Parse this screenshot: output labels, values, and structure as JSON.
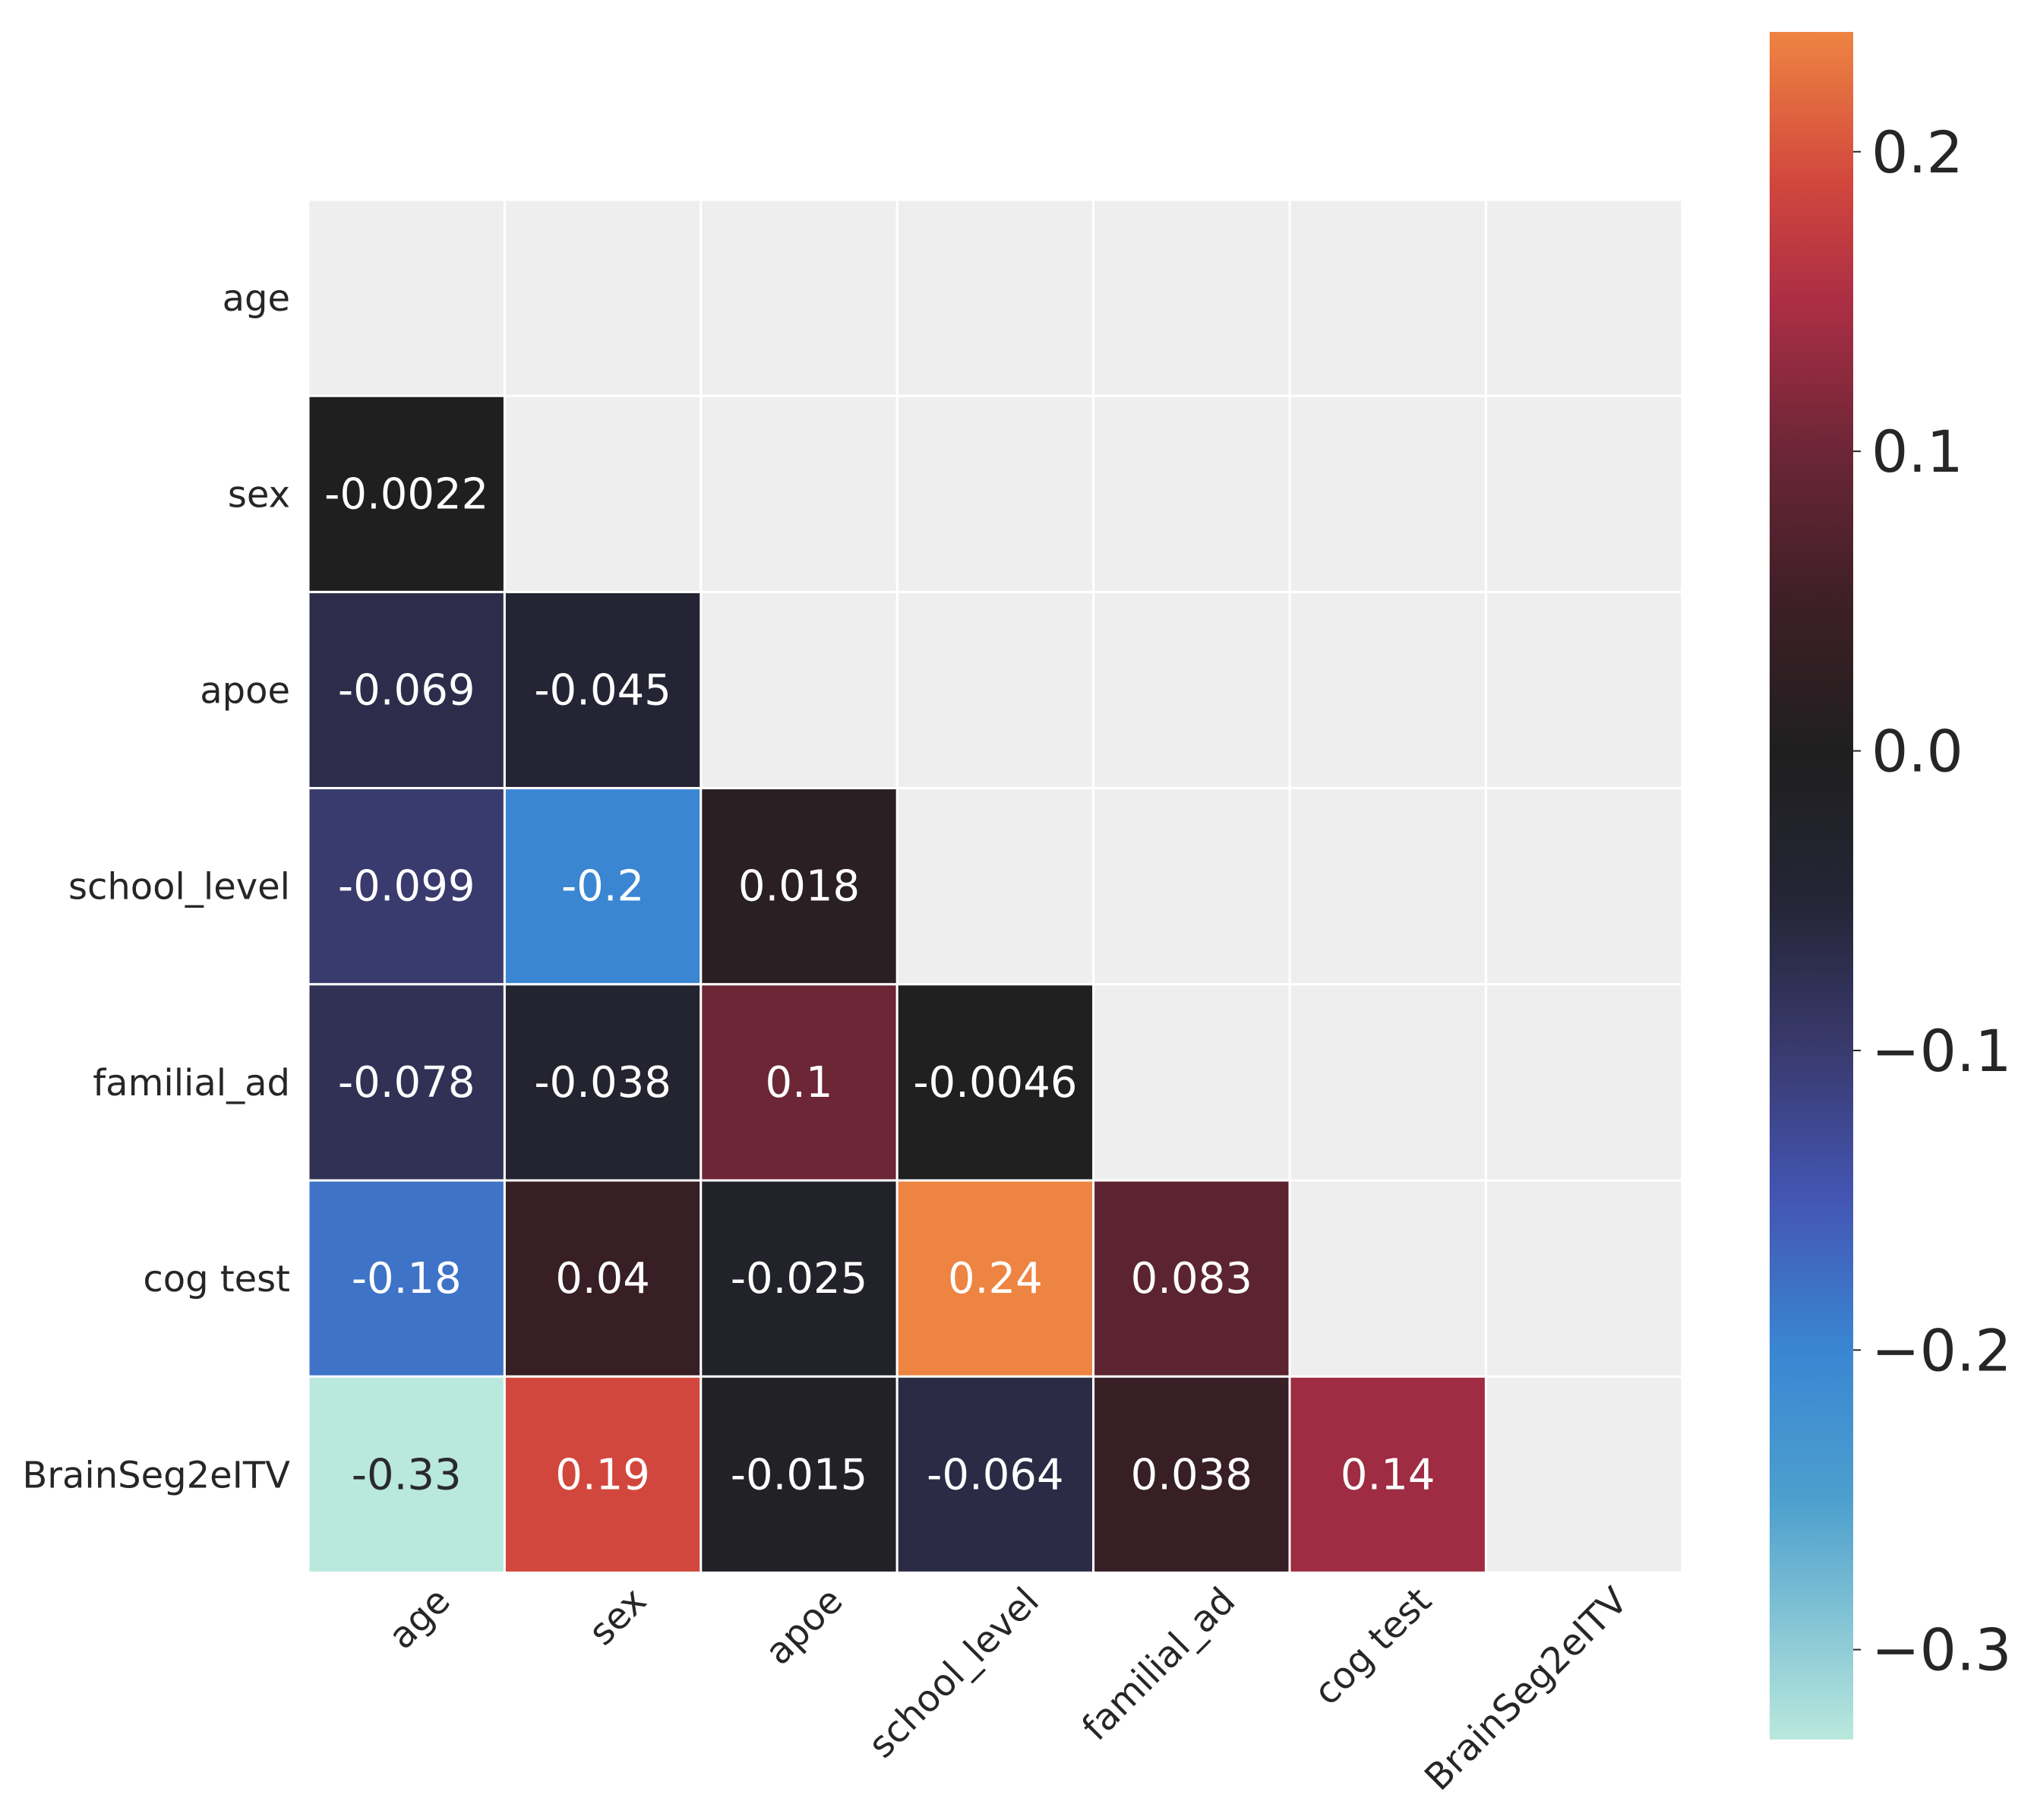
{
  "chart_data": {
    "type": "heatmap",
    "title": "",
    "xlabel": "",
    "ylabel": "",
    "rows": [
      "age",
      "sex",
      "apoe",
      "school_level",
      "familial_ad",
      "cog test",
      "BrainSeg2eITV"
    ],
    "columns": [
      "age",
      "sex",
      "apoe",
      "school_level",
      "familial_ad",
      "cog test",
      "BrainSeg2eITV"
    ],
    "mask": "upper triangle incl. diagonal",
    "cells": [
      {
        "row": 1,
        "col": 0,
        "value": -0.0022,
        "label": "-0.0022"
      },
      {
        "row": 2,
        "col": 0,
        "value": -0.069,
        "label": "-0.069"
      },
      {
        "row": 2,
        "col": 1,
        "value": -0.045,
        "label": "-0.045"
      },
      {
        "row": 3,
        "col": 0,
        "value": -0.099,
        "label": "-0.099"
      },
      {
        "row": 3,
        "col": 1,
        "value": -0.2,
        "label": "-0.2"
      },
      {
        "row": 3,
        "col": 2,
        "value": 0.018,
        "label": "0.018"
      },
      {
        "row": 4,
        "col": 0,
        "value": -0.078,
        "label": "-0.078"
      },
      {
        "row": 4,
        "col": 1,
        "value": -0.038,
        "label": "-0.038"
      },
      {
        "row": 4,
        "col": 2,
        "value": 0.1,
        "label": "0.1"
      },
      {
        "row": 4,
        "col": 3,
        "value": -0.0046,
        "label": "-0.0046"
      },
      {
        "row": 5,
        "col": 0,
        "value": -0.18,
        "label": "-0.18"
      },
      {
        "row": 5,
        "col": 1,
        "value": 0.04,
        "label": "0.04"
      },
      {
        "row": 5,
        "col": 2,
        "value": -0.025,
        "label": "-0.025"
      },
      {
        "row": 5,
        "col": 3,
        "value": 0.24,
        "label": "0.24"
      },
      {
        "row": 5,
        "col": 4,
        "value": 0.083,
        "label": "0.083"
      },
      {
        "row": 6,
        "col": 0,
        "value": -0.33,
        "label": "-0.33"
      },
      {
        "row": 6,
        "col": 1,
        "value": 0.19,
        "label": "0.19"
      },
      {
        "row": 6,
        "col": 2,
        "value": -0.015,
        "label": "-0.015"
      },
      {
        "row": 6,
        "col": 3,
        "value": -0.064,
        "label": "-0.064"
      },
      {
        "row": 6,
        "col": 4,
        "value": 0.038,
        "label": "0.038"
      },
      {
        "row": 6,
        "col": 5,
        "value": 0.14,
        "label": "0.14"
      }
    ],
    "colorbar": {
      "vmin": -0.33,
      "vmax": 0.24,
      "ticks": [
        0.2,
        0.1,
        0.0,
        -0.1,
        -0.2,
        -0.3
      ],
      "tick_labels": [
        "0.2",
        "0.1",
        "0.0",
        "−0.1",
        "−0.2",
        "−0.3"
      ]
    },
    "colormap_stops": [
      {
        "value": -0.33,
        "color": "#b9e8dc"
      },
      {
        "value": -0.25,
        "color": "#4d9fce"
      },
      {
        "value": -0.2,
        "color": "#3a86d3"
      },
      {
        "value": -0.15,
        "color": "#4456b4"
      },
      {
        "value": -0.1,
        "color": "#393a6e"
      },
      {
        "value": -0.05,
        "color": "#252536"
      },
      {
        "value": 0.0,
        "color": "#1f1f1f"
      },
      {
        "value": 0.05,
        "color": "#3e1f27"
      },
      {
        "value": 0.1,
        "color": "#6c2636"
      },
      {
        "value": 0.15,
        "color": "#ac2e45"
      },
      {
        "value": 0.19,
        "color": "#d2473d"
      },
      {
        "value": 0.24,
        "color": "#ee8442"
      }
    ],
    "mask_color": "#eeeeee",
    "grid": true
  }
}
